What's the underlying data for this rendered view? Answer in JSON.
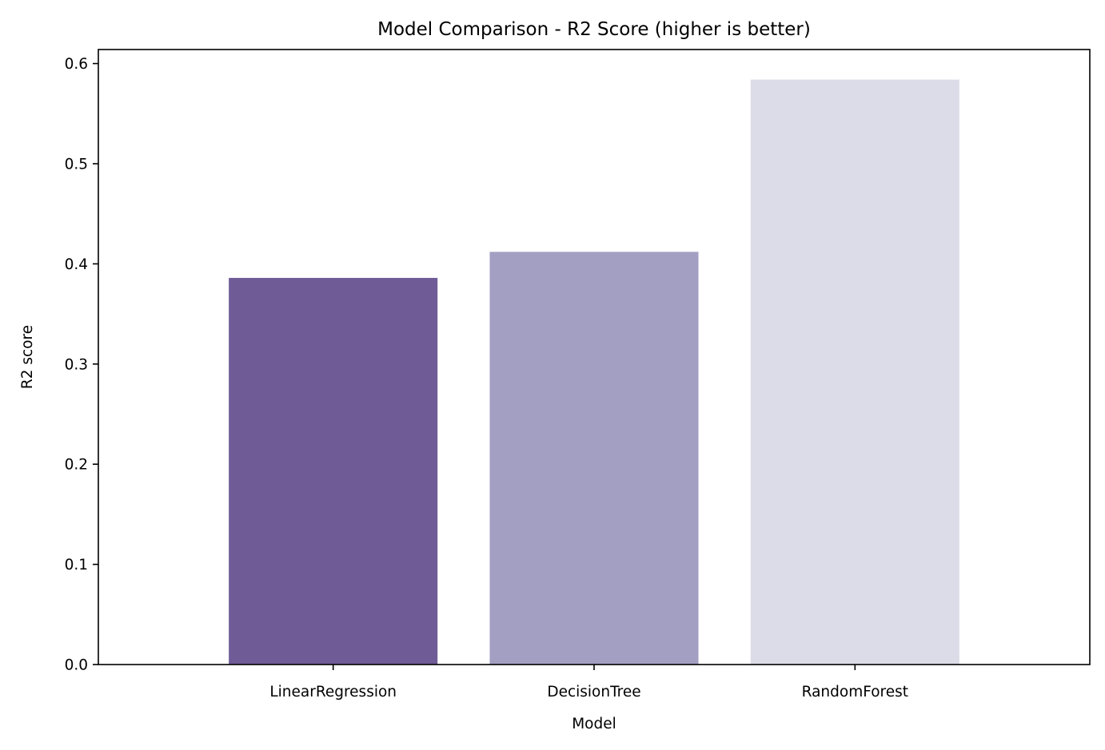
{
  "chart_data": {
    "type": "bar",
    "title": "Model Comparison - R2 Score (higher is better)",
    "xlabel": "Model",
    "ylabel": "R2 score",
    "categories": [
      "LinearRegression",
      "DecisionTree",
      "RandomForest"
    ],
    "values": [
      0.386,
      0.412,
      0.584
    ],
    "colors": [
      "#6f5b96",
      "#a39fc3",
      "#dcdce8"
    ],
    "ylim": [
      0,
      0.614
    ],
    "yticks": [
      0.0,
      0.1,
      0.2,
      0.3,
      0.4,
      0.5,
      0.6
    ],
    "ytick_labels": [
      "0.0",
      "0.1",
      "0.2",
      "0.3",
      "0.4",
      "0.5",
      "0.6"
    ],
    "grid": false,
    "legend": "none"
  }
}
